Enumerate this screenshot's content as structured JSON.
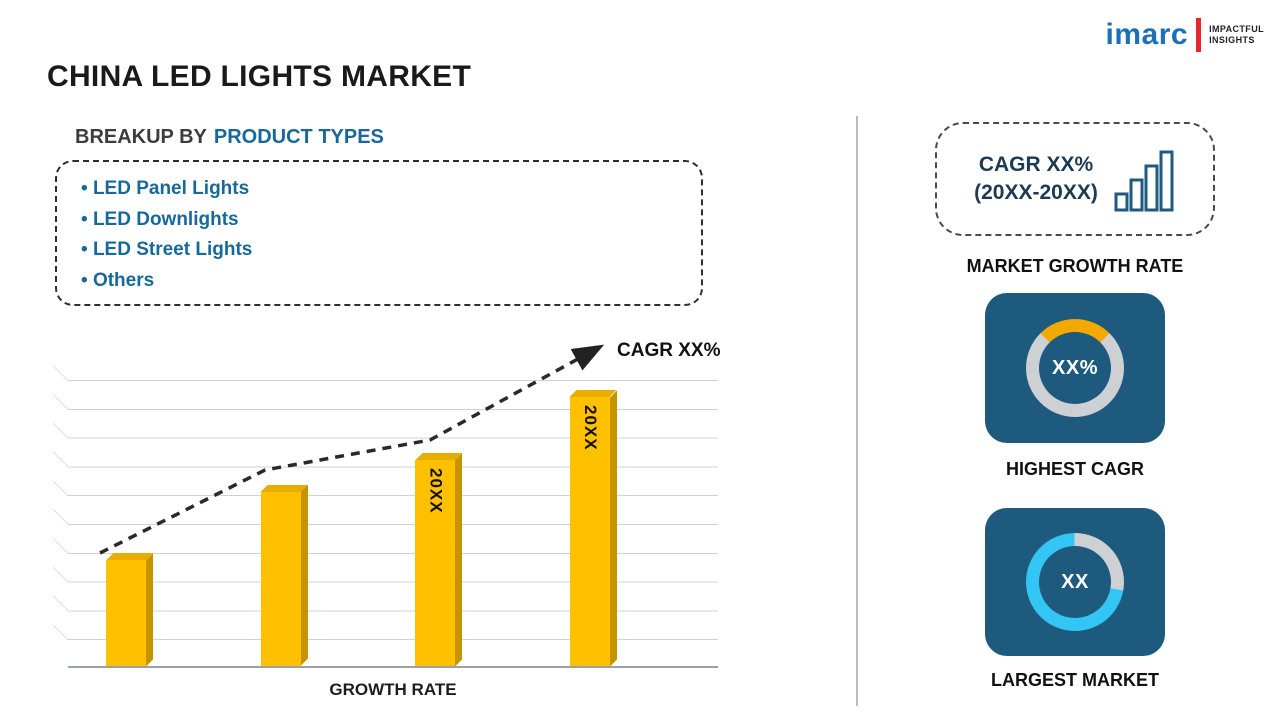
{
  "page": {
    "title": "CHINA LED LIGHTS MARKET"
  },
  "logo": {
    "brand": "imarc",
    "tagline_line1": "IMPACTFUL",
    "tagline_line2": "INSIGHTS"
  },
  "breakup": {
    "heading_prefix": "BREAKUP BY",
    "heading_highlight": "PRODUCT TYPES",
    "items": [
      "LED Panel Lights",
      "LED Downlights",
      "LED Street Lights",
      "Others"
    ]
  },
  "chart_data": {
    "type": "bar",
    "categories": [
      "",
      "",
      "20XX",
      "20XX"
    ],
    "values": [
      37,
      61,
      72,
      94
    ],
    "ylim": [
      0,
      100
    ],
    "xlabel": "GROWTH RATE",
    "bar_color": "#FFC000",
    "trend_label": "CAGR XX%",
    "gridlines": true,
    "title": "China LED Lights Market growth trend"
  },
  "sidebar": {
    "growth_box": {
      "line1": "CAGR XX%",
      "line2": "(20XX-20XX)"
    },
    "growth_caption": "MARKET GROWTH RATE",
    "tiles": [
      {
        "value": "XX%",
        "caption": "HIGHEST CAGR",
        "ring_percent": 25,
        "ring_start_deg": 315,
        "ring_color": "#F2A900"
      },
      {
        "value": "XX",
        "caption": "LARGEST MARKET",
        "ring_percent": 72,
        "ring_start_deg": 100,
        "ring_color": "#33C6F4"
      }
    ],
    "colors": {
      "tile_bg": "#1E5A7D",
      "ring_base": "#CDD1D4"
    }
  }
}
